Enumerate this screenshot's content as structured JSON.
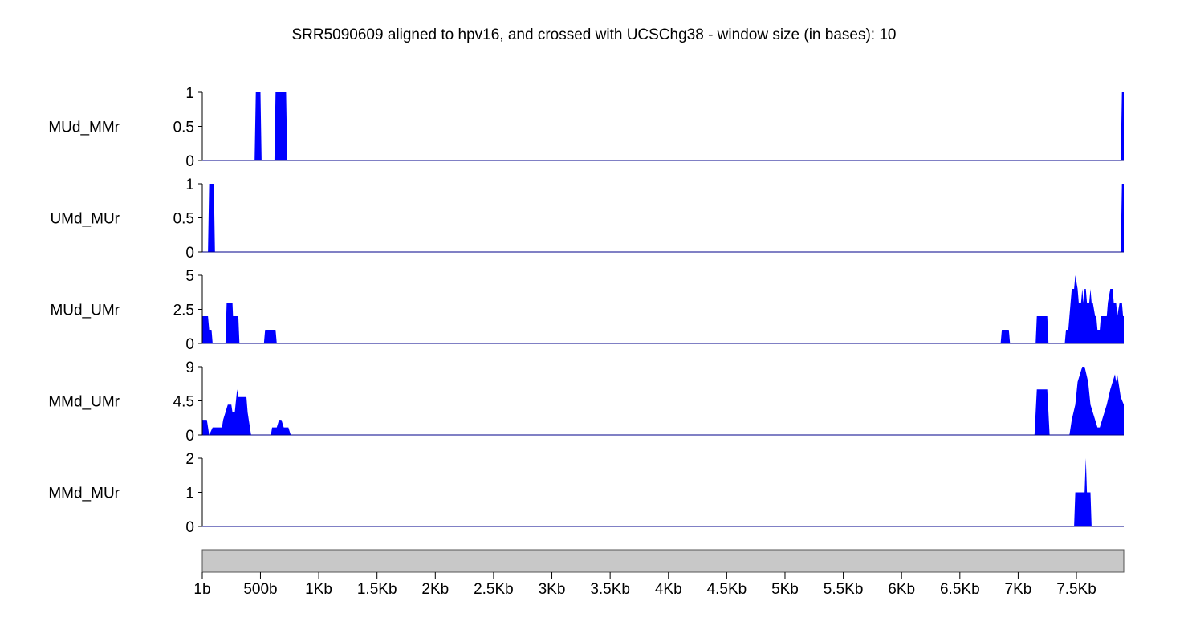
{
  "chart_data": {
    "type": "area",
    "title": "SRR5090609 aligned to hpv16, and crossed with UCSChg38 - window size (in bases):  10",
    "fill_color": "#0000ff",
    "track_color": "#c8c8c8",
    "x_range": [
      1,
      7906
    ],
    "x_ticks": [
      {
        "value": 1,
        "label": "1b"
      },
      {
        "value": 500,
        "label": "500b"
      },
      {
        "value": 1000,
        "label": "1Kb"
      },
      {
        "value": 1500,
        "label": "1.5Kb"
      },
      {
        "value": 2000,
        "label": "2Kb"
      },
      {
        "value": 2500,
        "label": "2.5Kb"
      },
      {
        "value": 3000,
        "label": "3Kb"
      },
      {
        "value": 3500,
        "label": "3.5Kb"
      },
      {
        "value": 4000,
        "label": "4Kb"
      },
      {
        "value": 4500,
        "label": "4.5Kb"
      },
      {
        "value": 5000,
        "label": "5Kb"
      },
      {
        "value": 5500,
        "label": "5.5Kb"
      },
      {
        "value": 6000,
        "label": "6Kb"
      },
      {
        "value": 6500,
        "label": "6.5Kb"
      },
      {
        "value": 7000,
        "label": "7Kb"
      },
      {
        "value": 7500,
        "label": "7.5Kb"
      }
    ],
    "series": [
      {
        "name": "MUd_MMr",
        "ylim": [
          0,
          1
        ],
        "yticks": [
          {
            "v": 0,
            "label": "0"
          },
          {
            "v": 0.5,
            "label": "0.5"
          },
          {
            "v": 1,
            "label": "1"
          }
        ],
        "points": [
          [
            1,
            0
          ],
          [
            450,
            0
          ],
          [
            460,
            1
          ],
          [
            500,
            1
          ],
          [
            510,
            0
          ],
          [
            620,
            0
          ],
          [
            630,
            1
          ],
          [
            720,
            1
          ],
          [
            730,
            0
          ],
          [
            7880,
            0
          ],
          [
            7890,
            1
          ],
          [
            7906,
            1
          ]
        ]
      },
      {
        "name": "UMd_MUr",
        "ylim": [
          0,
          1
        ],
        "yticks": [
          {
            "v": 0,
            "label": "0"
          },
          {
            "v": 0.5,
            "label": "0.5"
          },
          {
            "v": 1,
            "label": "1"
          }
        ],
        "points": [
          [
            1,
            0
          ],
          [
            50,
            0
          ],
          [
            60,
            1
          ],
          [
            100,
            1
          ],
          [
            110,
            0
          ],
          [
            7880,
            0
          ],
          [
            7890,
            1
          ],
          [
            7906,
            1
          ]
        ]
      },
      {
        "name": "MUd_UMr",
        "ylim": [
          0,
          5
        ],
        "yticks": [
          {
            "v": 0,
            "label": "0"
          },
          {
            "v": 2.5,
            "label": "2.5"
          },
          {
            "v": 5,
            "label": "5"
          }
        ],
        "points": [
          [
            1,
            2
          ],
          [
            50,
            2
          ],
          [
            60,
            1
          ],
          [
            80,
            1
          ],
          [
            90,
            0
          ],
          [
            200,
            0
          ],
          [
            210,
            3
          ],
          [
            260,
            3
          ],
          [
            265,
            2
          ],
          [
            310,
            2
          ],
          [
            320,
            0
          ],
          [
            530,
            0
          ],
          [
            540,
            1
          ],
          [
            630,
            1
          ],
          [
            640,
            0
          ],
          [
            6850,
            0
          ],
          [
            6860,
            1
          ],
          [
            6920,
            1
          ],
          [
            6930,
            0
          ],
          [
            7150,
            0
          ],
          [
            7160,
            2
          ],
          [
            7250,
            2
          ],
          [
            7260,
            0
          ],
          [
            7400,
            0
          ],
          [
            7410,
            1
          ],
          [
            7430,
            1
          ],
          [
            7440,
            2
          ],
          [
            7460,
            4
          ],
          [
            7480,
            4
          ],
          [
            7490,
            5
          ],
          [
            7510,
            4
          ],
          [
            7520,
            3
          ],
          [
            7540,
            3
          ],
          [
            7550,
            4
          ],
          [
            7560,
            3
          ],
          [
            7570,
            4
          ],
          [
            7580,
            4
          ],
          [
            7590,
            3
          ],
          [
            7610,
            3
          ],
          [
            7620,
            4
          ],
          [
            7630,
            3
          ],
          [
            7640,
            3
          ],
          [
            7660,
            2
          ],
          [
            7670,
            2
          ],
          [
            7680,
            1
          ],
          [
            7700,
            1
          ],
          [
            7710,
            2
          ],
          [
            7760,
            2
          ],
          [
            7770,
            3
          ],
          [
            7790,
            4
          ],
          [
            7810,
            4
          ],
          [
            7820,
            3
          ],
          [
            7840,
            3
          ],
          [
            7850,
            2
          ],
          [
            7870,
            3
          ],
          [
            7890,
            3
          ],
          [
            7900,
            2
          ],
          [
            7906,
            2
          ]
        ]
      },
      {
        "name": "MMd_UMr",
        "ylim": [
          0,
          9
        ],
        "yticks": [
          {
            "v": 0,
            "label": "0"
          },
          {
            "v": 4.5,
            "label": "4.5"
          },
          {
            "v": 9,
            "label": "9"
          }
        ],
        "points": [
          [
            1,
            2
          ],
          [
            40,
            2
          ],
          [
            60,
            0
          ],
          [
            90,
            1
          ],
          [
            170,
            1
          ],
          [
            180,
            2
          ],
          [
            200,
            3
          ],
          [
            220,
            4
          ],
          [
            250,
            4
          ],
          [
            260,
            3
          ],
          [
            280,
            3
          ],
          [
            300,
            6
          ],
          [
            310,
            5
          ],
          [
            380,
            5
          ],
          [
            390,
            3
          ],
          [
            420,
            0
          ],
          [
            590,
            0
          ],
          [
            600,
            1
          ],
          [
            640,
            1
          ],
          [
            660,
            2
          ],
          [
            680,
            2
          ],
          [
            700,
            1
          ],
          [
            740,
            1
          ],
          [
            760,
            0
          ],
          [
            7140,
            0
          ],
          [
            7160,
            6
          ],
          [
            7250,
            6
          ],
          [
            7270,
            0
          ],
          [
            7440,
            0
          ],
          [
            7460,
            2
          ],
          [
            7490,
            4
          ],
          [
            7510,
            7
          ],
          [
            7530,
            8
          ],
          [
            7550,
            9
          ],
          [
            7570,
            9
          ],
          [
            7600,
            7
          ],
          [
            7620,
            4
          ],
          [
            7640,
            3
          ],
          [
            7660,
            2
          ],
          [
            7680,
            1
          ],
          [
            7700,
            1
          ],
          [
            7720,
            2
          ],
          [
            7760,
            4
          ],
          [
            7790,
            6
          ],
          [
            7810,
            7
          ],
          [
            7830,
            8
          ],
          [
            7840,
            7
          ],
          [
            7850,
            8
          ],
          [
            7860,
            7
          ],
          [
            7880,
            5
          ],
          [
            7906,
            4
          ]
        ]
      },
      {
        "name": "MMd_MUr",
        "ylim": [
          0,
          2
        ],
        "yticks": [
          {
            "v": 0,
            "label": "0"
          },
          {
            "v": 1,
            "label": "1"
          },
          {
            "v": 2,
            "label": "2"
          }
        ],
        "points": [
          [
            1,
            0
          ],
          [
            7480,
            0
          ],
          [
            7490,
            1
          ],
          [
            7570,
            1
          ],
          [
            7580,
            2
          ],
          [
            7590,
            1
          ],
          [
            7620,
            1
          ],
          [
            7630,
            0
          ],
          [
            7906,
            0
          ]
        ]
      }
    ]
  }
}
